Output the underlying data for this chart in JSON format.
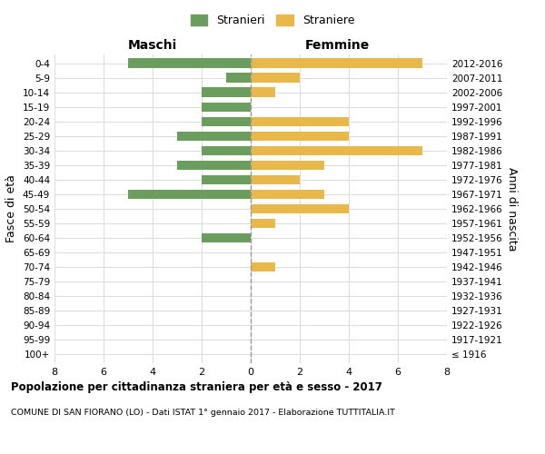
{
  "age_groups": [
    "100+",
    "95-99",
    "90-94",
    "85-89",
    "80-84",
    "75-79",
    "70-74",
    "65-69",
    "60-64",
    "55-59",
    "50-54",
    "45-49",
    "40-44",
    "35-39",
    "30-34",
    "25-29",
    "20-24",
    "15-19",
    "10-14",
    "5-9",
    "0-4"
  ],
  "birth_years": [
    "≤ 1916",
    "1917-1921",
    "1922-1926",
    "1927-1931",
    "1932-1936",
    "1937-1941",
    "1942-1946",
    "1947-1951",
    "1952-1956",
    "1957-1961",
    "1962-1966",
    "1967-1971",
    "1972-1976",
    "1977-1981",
    "1982-1986",
    "1987-1991",
    "1992-1996",
    "1997-2001",
    "2002-2006",
    "2007-2011",
    "2012-2016"
  ],
  "maschi": [
    0,
    0,
    0,
    0,
    0,
    0,
    0,
    0,
    2,
    0,
    0,
    5,
    2,
    3,
    2,
    3,
    2,
    2,
    2,
    1,
    5
  ],
  "femmine": [
    0,
    0,
    0,
    0,
    0,
    0,
    1,
    0,
    0,
    1,
    4,
    3,
    2,
    3,
    7,
    4,
    4,
    0,
    1,
    2,
    7
  ],
  "color_maschi": "#6b9e5e",
  "color_femmine": "#e8b84b",
  "xlim": 8,
  "title": "Popolazione per cittadinanza straniera per età e sesso - 2017",
  "subtitle": "COMUNE DI SAN FIORANO (LO) - Dati ISTAT 1° gennaio 2017 - Elaborazione TUTTITALIA.IT",
  "ylabel_left": "Fasce di età",
  "ylabel_right": "Anni di nascita",
  "label_maschi": "Maschi",
  "label_femmine": "Femmine",
  "legend_stranieri": "Stranieri",
  "legend_straniere": "Straniere",
  "background_color": "#ffffff",
  "grid_color": "#dddddd"
}
